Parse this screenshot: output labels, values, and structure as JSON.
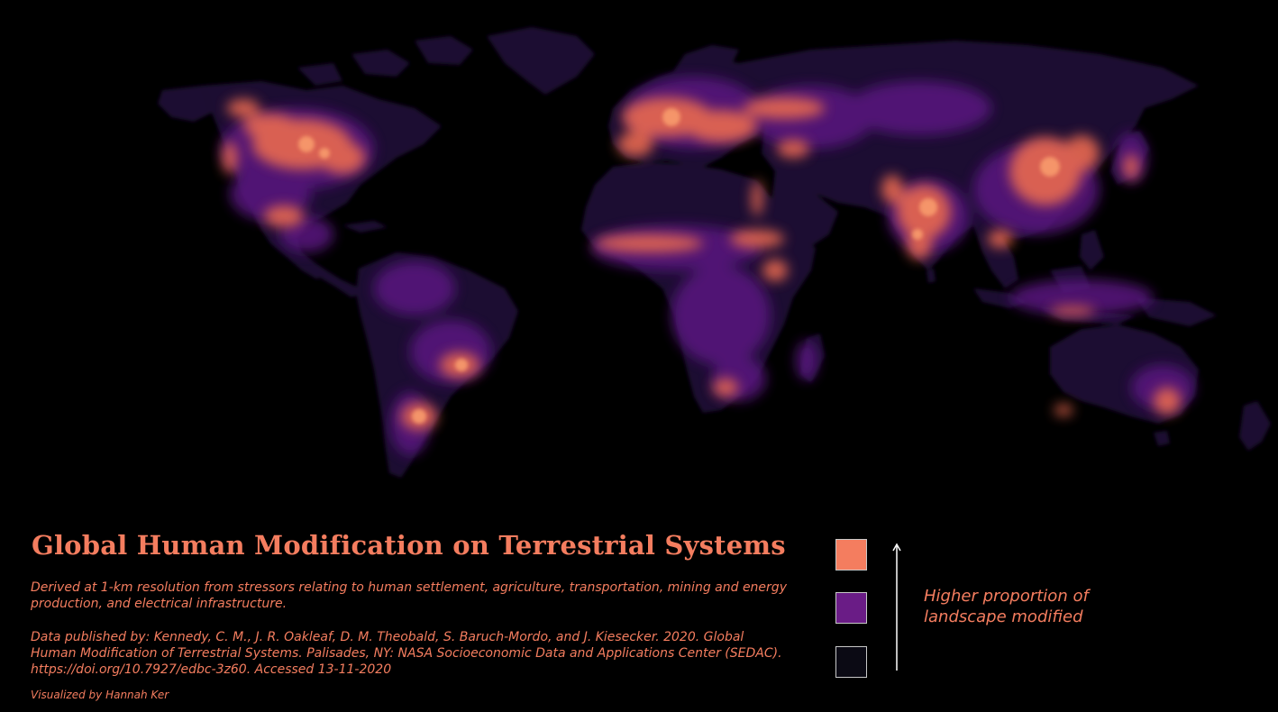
{
  "title": "Global Human Modification on Terrestrial Systems",
  "description": "Derived at 1-km resolution from stressors relating to human settlement, agriculture, transportation, mining and energy production, and electrical infrastructure.",
  "citation": "Data published by: Kennedy, C. M., J. R. Oakleaf, D. M. Theobald, S. Baruch-Mordo, and J. Kiesecker. 2020. Global Human Modification of Terrestrial Systems. Palisades, NY: NASA Socioeconomic Data and Applications Center (SEDAC). https://doi.org/10.7927/edbc-3z60. Accessed 13-11-2020",
  "credit": "Visualized by Hannah Ker",
  "legend": {
    "label": "Higher proportion of landscape modified",
    "colors": {
      "high": "#f47d5f",
      "mid": "#6a1c86",
      "low": "#0b0a14"
    }
  },
  "map": {
    "background": "#000000",
    "palette": [
      "#1a0b2e",
      "#3d0f5c",
      "#6a1c86",
      "#9b2f8e",
      "#cf4f7c",
      "#f47d5f",
      "#fca36f"
    ],
    "projection": "world equirectangular-like",
    "theme": "dark"
  }
}
